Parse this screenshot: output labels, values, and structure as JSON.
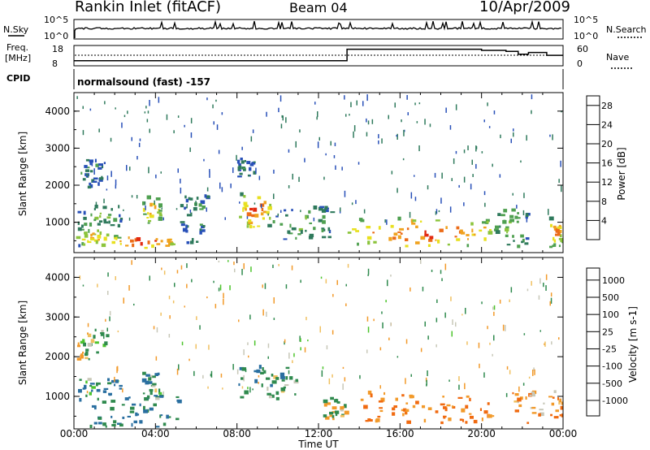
{
  "header": {
    "station": "Rankin Inlet (fitACF)",
    "beam": "Beam 04",
    "date": "10/Apr/2009"
  },
  "top_panels": {
    "nsky_label": "N.Sky",
    "nsky_ticks": [
      "10^5",
      "10^0"
    ],
    "nsearch_label": "N.Search",
    "nsearch_ticks": [
      "10^5",
      "10^0"
    ],
    "freq_label_line1": "Freq.",
    "freq_label_line2": "[MHz]",
    "freq_ticks": [
      "18",
      "8"
    ],
    "nave_label": "Nave",
    "nave_ticks": [
      "60",
      "0"
    ],
    "cpid_label": "CPID",
    "cpid_value": "normalsound (fast) -157"
  },
  "colors": {
    "power": [
      "#1e1ee8",
      "#2850b8",
      "#2f7a5c",
      "#4fa050",
      "#8cc43c",
      "#e8e020",
      "#f0a21e",
      "#ec6c18",
      "#e22a10",
      "#e80000"
    ],
    "velocity": [
      "#2834b8",
      "#2a6fa0",
      "#2f8a4e",
      "#4cc42c",
      "#c8c8b8",
      "#f0c060",
      "#f29a2a",
      "#f06a10",
      "#ee3a0a",
      "#e80000"
    ]
  },
  "chart_data": [
    {
      "type": "heatmap",
      "title": "Power",
      "ylabel": "Slant Range [km]",
      "xlabel": "",
      "x_ticks": [
        "00:00",
        "04:00",
        "08:00",
        "12:00",
        "16:00",
        "20:00",
        "00:00"
      ],
      "y_ticks": [
        "1000",
        "2000",
        "3000",
        "4000"
      ],
      "ylim": [
        180,
        4500
      ],
      "colorbar_label": "Power [dB]",
      "colorbar_ticks": [
        "4",
        "8",
        "12",
        "16",
        "20",
        "24",
        "28"
      ],
      "colorbar_range": [
        0,
        30
      ],
      "blobs": [
        {
          "t": [
            1.8,
            4.9
          ],
          "r": [
            260,
            620
          ],
          "v": 29
        },
        {
          "t": [
            0.1,
            1.8
          ],
          "r": [
            320,
            780
          ],
          "v": 21
        },
        {
          "t": [
            0.1,
            2.3
          ],
          "r": [
            820,
            1380
          ],
          "v": 12
        },
        {
          "t": [
            3.3,
            4.2
          ],
          "r": [
            900,
            1650
          ],
          "v": 22
        },
        {
          "t": [
            5.2,
            6.6
          ],
          "r": [
            400,
            1700
          ],
          "v": 11
        },
        {
          "t": [
            0.1,
            1.5
          ],
          "r": [
            1900,
            2650
          ],
          "v": 9
        },
        {
          "t": [
            8.0,
            9.6
          ],
          "r": [
            820,
            1750
          ],
          "v": 27
        },
        {
          "t": [
            9.6,
            12.6
          ],
          "r": [
            500,
            1400
          ],
          "v": 12
        },
        {
          "t": [
            8.0,
            8.8
          ],
          "r": [
            2200,
            2700
          ],
          "v": 8
        },
        {
          "t": [
            13.4,
            20.6
          ],
          "r": [
            320,
            1050
          ],
          "v": 28
        },
        {
          "t": [
            20.6,
            22.2
          ],
          "r": [
            300,
            1300
          ],
          "v": 14
        },
        {
          "t": [
            23.3,
            24.0
          ],
          "r": [
            300,
            1100
          ],
          "v": 23
        }
      ]
    },
    {
      "type": "heatmap",
      "title": "Velocity",
      "ylabel": "Slant Range [km]",
      "xlabel": "Time UT",
      "x_ticks": [
        "00:00",
        "04:00",
        "08:00",
        "12:00",
        "16:00",
        "20:00",
        "00:00"
      ],
      "y_ticks": [
        "1000",
        "2000",
        "3000",
        "4000"
      ],
      "ylim": [
        180,
        4500
      ],
      "colorbar_label": "Velocity [m s-1]",
      "colorbar_ticks": [
        "1000",
        "500",
        "100",
        "25",
        "-25",
        "-100",
        "-500",
        "-1000"
      ],
      "colorbar_range": [
        -1000,
        1000
      ],
      "blobs": [
        {
          "t": [
            0.1,
            5.2
          ],
          "r": [
            200,
            1000
          ],
          "v": 300
        },
        {
          "t": [
            0.1,
            2.3
          ],
          "r": [
            1000,
            1400
          ],
          "v": 250
        },
        {
          "t": [
            3.3,
            4.2
          ],
          "r": [
            900,
            1600
          ],
          "v": 200
        },
        {
          "t": [
            0.1,
            1.6
          ],
          "r": [
            1900,
            2650
          ],
          "v": 0
        },
        {
          "t": [
            8.0,
            11.0
          ],
          "r": [
            900,
            1700
          ],
          "v": 200
        },
        {
          "t": [
            12.2,
            13.3
          ],
          "r": [
            400,
            1000
          ],
          "v": 50
        },
        {
          "t": [
            13.4,
            20.8
          ],
          "r": [
            300,
            1050
          ],
          "v": -300
        },
        {
          "t": [
            21.5,
            24.0
          ],
          "r": [
            300,
            1100
          ],
          "v": -200
        }
      ]
    }
  ],
  "time_axis_label": "Time UT"
}
